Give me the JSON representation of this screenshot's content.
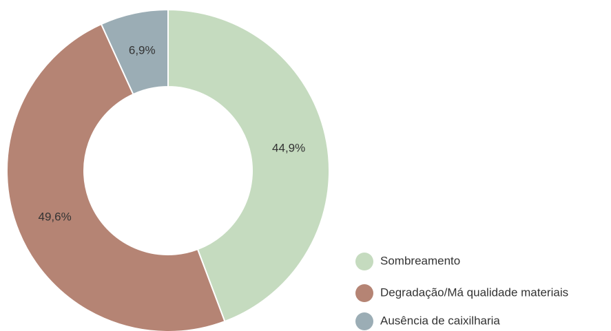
{
  "chart_data": {
    "type": "donut",
    "categories": [
      "Sombreamento",
      "Degradação/Má qualidade materiais",
      "Ausência de caixilharia"
    ],
    "values": [
      44.9,
      49.6,
      6.9
    ],
    "value_labels": [
      "44,9%",
      "49,6%",
      "6,9%"
    ],
    "colors": [
      "#c5dbbf",
      "#b58474",
      "#9badb5"
    ],
    "legend": "bottom-right"
  }
}
